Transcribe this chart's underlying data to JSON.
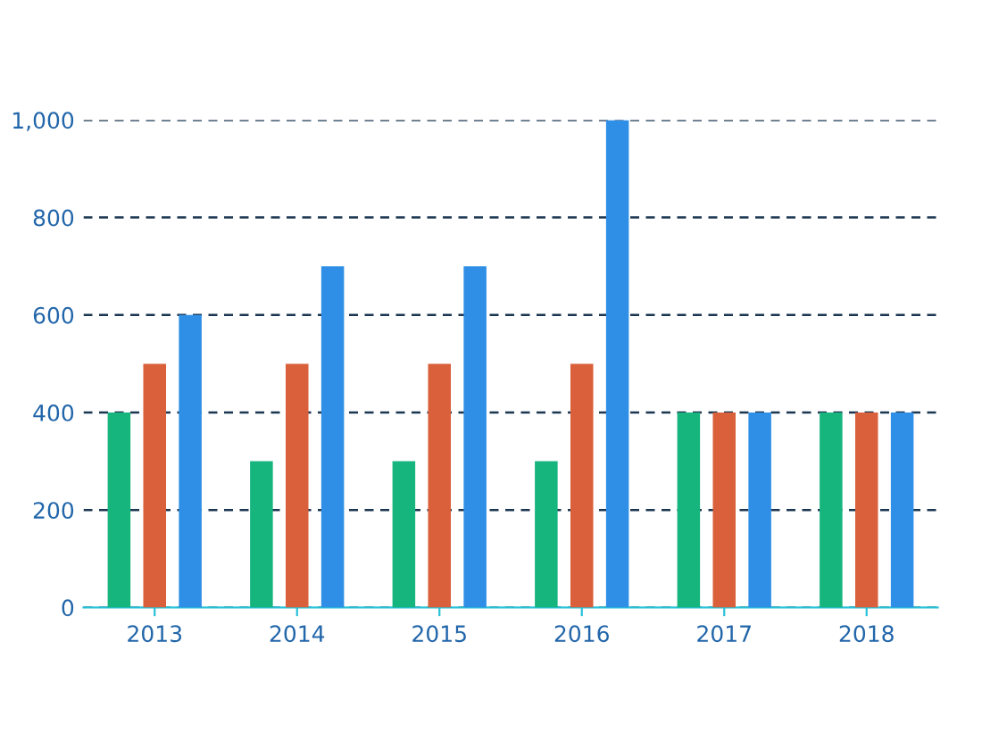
{
  "chart_data": {
    "type": "bar",
    "categories": [
      "2013",
      "2014",
      "2015",
      "2016",
      "2017",
      "2018"
    ],
    "series": [
      {
        "color": "#16b57e",
        "values": [
          400,
          300,
          300,
          300,
          400,
          400
        ]
      },
      {
        "color": "#d9603a",
        "values": [
          500,
          500,
          500,
          500,
          400,
          400
        ]
      },
      {
        "color": "#2f8fe6",
        "values": [
          600,
          700,
          700,
          1000,
          400,
          400
        ]
      }
    ],
    "ylim": [
      0,
      1000
    ],
    "yticks": [
      0,
      {
        "value": 200,
        "label": "200"
      },
      {
        "value": 400,
        "label": "400"
      },
      {
        "value": 600,
        "label": "600"
      },
      {
        "value": 800,
        "label": "800"
      },
      {
        "value": 1000,
        "label": "1,000"
      }
    ],
    "grid": "y"
  }
}
